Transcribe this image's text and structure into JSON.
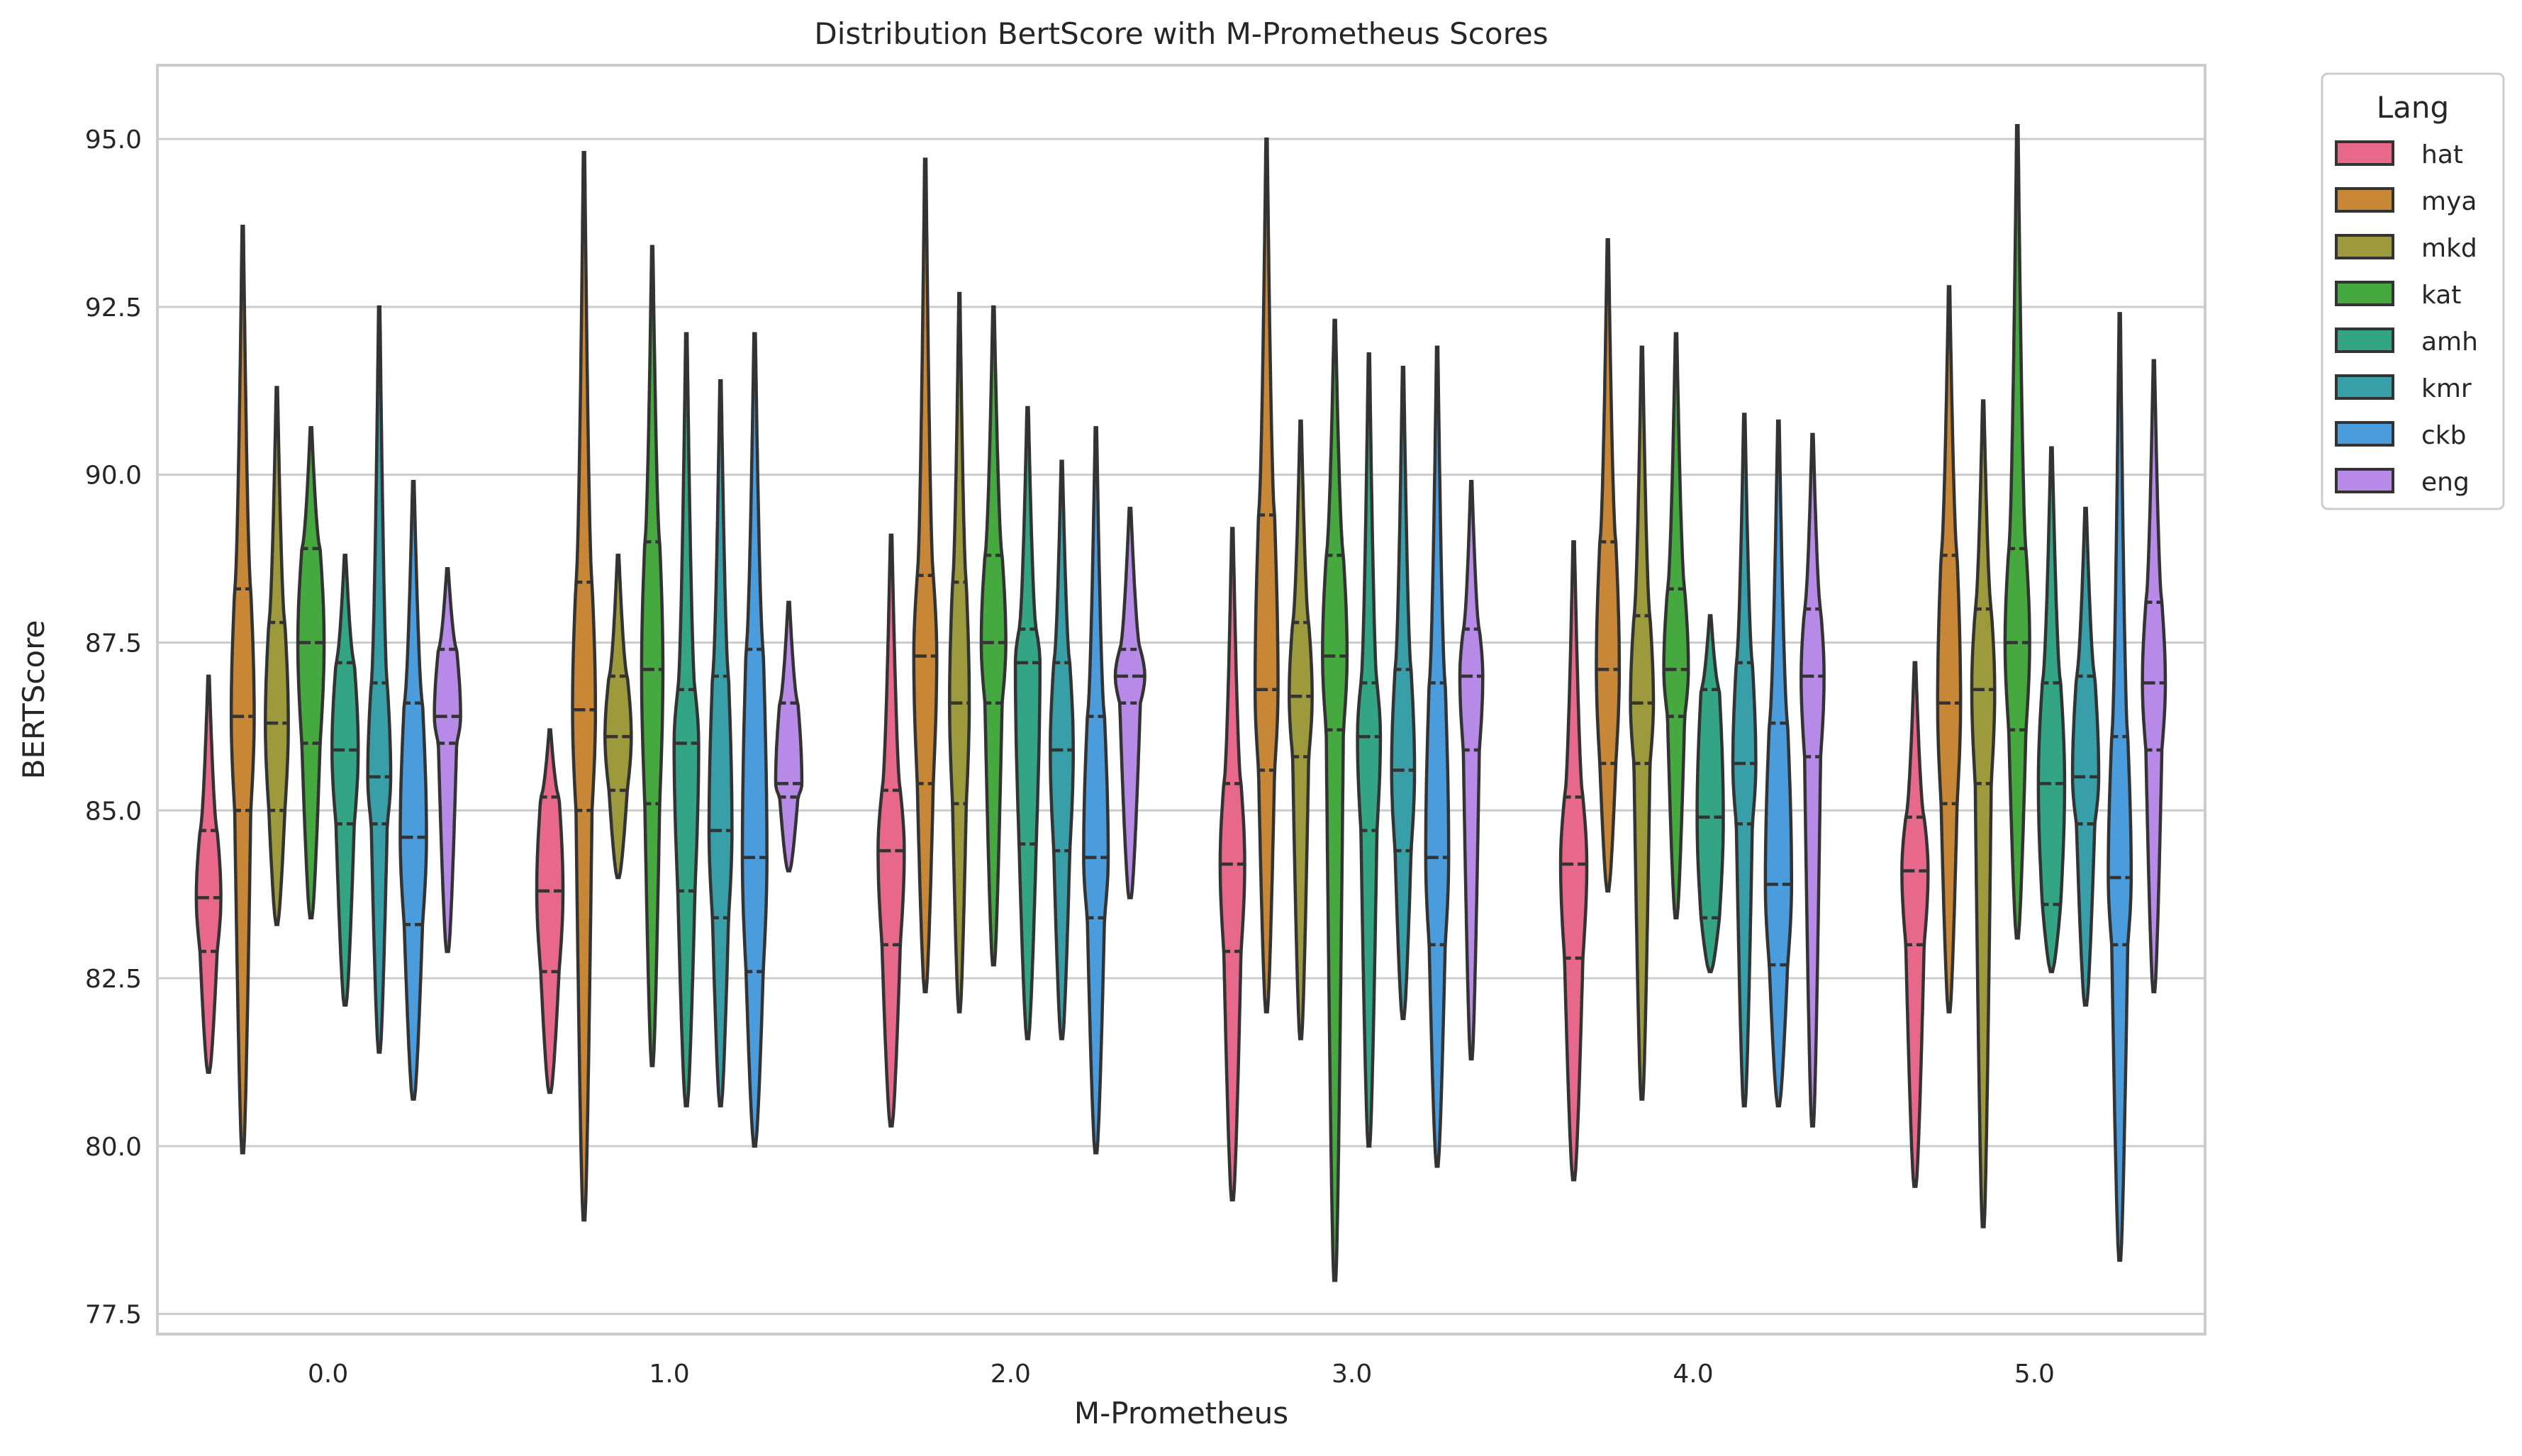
{
  "chart_data": {
    "type": "violin",
    "title": "Distribution BertScore with M-Prometheus Scores",
    "xlabel": "M-Prometheus",
    "ylabel": "BERTScore",
    "ylim": [
      77.2,
      96.1
    ],
    "yticks": [
      77.5,
      80.0,
      82.5,
      85.0,
      87.5,
      90.0,
      92.5,
      95.0
    ],
    "ytick_labels": [
      "77.5",
      "80.0",
      "82.5",
      "85.0",
      "87.5",
      "90.0",
      "92.5",
      "95.0"
    ],
    "categories": [
      "0.0",
      "1.0",
      "2.0",
      "3.0",
      "4.0",
      "5.0"
    ],
    "grid": true,
    "inner": "quartile",
    "legend": {
      "title": "Lang",
      "placement": "outside-top-right"
    },
    "series": [
      {
        "name": "hat",
        "color": "#e8688c",
        "stats": [
          {
            "min": 81.1,
            "q1": 82.9,
            "median": 83.7,
            "q3": 84.7,
            "max": 87.0,
            "width": 0.75
          },
          {
            "min": 80.8,
            "q1": 82.6,
            "median": 83.8,
            "q3": 85.2,
            "max": 86.2,
            "width": 0.8
          },
          {
            "min": 80.3,
            "q1": 83.0,
            "median": 84.4,
            "q3": 85.3,
            "max": 89.1,
            "width": 0.8
          },
          {
            "min": 79.2,
            "q1": 82.9,
            "median": 84.2,
            "q3": 85.4,
            "max": 89.2,
            "width": 0.75
          },
          {
            "min": 79.5,
            "q1": 82.8,
            "median": 84.2,
            "q3": 85.2,
            "max": 89.0,
            "width": 0.8
          },
          {
            "min": 79.4,
            "q1": 83.0,
            "median": 84.1,
            "q3": 84.9,
            "max": 87.2,
            "width": 0.8
          }
        ]
      },
      {
        "name": "mya",
        "color": "#c88737",
        "stats": [
          {
            "min": 79.9,
            "q1": 85.0,
            "median": 86.4,
            "q3": 88.3,
            "max": 93.7,
            "width": 0.7
          },
          {
            "min": 78.9,
            "q1": 85.0,
            "median": 86.5,
            "q3": 88.4,
            "max": 94.8,
            "width": 0.7
          },
          {
            "min": 82.3,
            "q1": 85.4,
            "median": 87.3,
            "q3": 88.5,
            "max": 94.7,
            "width": 0.7
          },
          {
            "min": 82.0,
            "q1": 85.6,
            "median": 86.8,
            "q3": 89.4,
            "max": 95.0,
            "width": 0.7
          },
          {
            "min": 83.8,
            "q1": 85.7,
            "median": 87.1,
            "q3": 89.0,
            "max": 93.5,
            "width": 0.7
          },
          {
            "min": 82.0,
            "q1": 85.1,
            "median": 86.6,
            "q3": 88.8,
            "max": 92.8,
            "width": 0.7
          }
        ]
      },
      {
        "name": "mkd",
        "color": "#9c9a3c",
        "stats": [
          {
            "min": 83.3,
            "q1": 85.0,
            "median": 86.3,
            "q3": 87.8,
            "max": 91.3,
            "width": 0.7
          },
          {
            "min": 84.0,
            "q1": 85.3,
            "median": 86.1,
            "q3": 87.0,
            "max": 88.8,
            "width": 0.8
          },
          {
            "min": 82.0,
            "q1": 85.1,
            "median": 86.6,
            "q3": 88.4,
            "max": 92.7,
            "width": 0.6
          },
          {
            "min": 81.6,
            "q1": 85.8,
            "median": 86.7,
            "q3": 87.8,
            "max": 90.8,
            "width": 0.7
          },
          {
            "min": 80.7,
            "q1": 85.7,
            "median": 86.6,
            "q3": 87.9,
            "max": 91.9,
            "width": 0.7
          },
          {
            "min": 78.8,
            "q1": 85.4,
            "median": 86.8,
            "q3": 88.0,
            "max": 91.1,
            "width": 0.7
          }
        ]
      },
      {
        "name": "kat",
        "color": "#45a93f",
        "stats": [
          {
            "min": 83.4,
            "q1": 86.0,
            "median": 87.5,
            "q3": 88.9,
            "max": 90.7,
            "width": 0.8
          },
          {
            "min": 81.2,
            "q1": 85.1,
            "median": 87.1,
            "q3": 89.0,
            "max": 93.4,
            "width": 0.65
          },
          {
            "min": 82.7,
            "q1": 86.6,
            "median": 87.5,
            "q3": 88.8,
            "max": 92.5,
            "width": 0.75
          },
          {
            "min": 78.0,
            "q1": 86.2,
            "median": 87.3,
            "q3": 88.8,
            "max": 92.3,
            "width": 0.75
          },
          {
            "min": 83.4,
            "q1": 86.4,
            "median": 87.1,
            "q3": 88.3,
            "max": 92.1,
            "width": 0.75
          },
          {
            "min": 83.1,
            "q1": 86.2,
            "median": 87.5,
            "q3": 88.9,
            "max": 95.2,
            "width": 0.75
          }
        ]
      },
      {
        "name": "amh",
        "color": "#33a584",
        "stats": [
          {
            "min": 82.1,
            "q1": 84.8,
            "median": 85.9,
            "q3": 87.2,
            "max": 88.8,
            "width": 0.8
          },
          {
            "min": 80.6,
            "q1": 83.8,
            "median": 86.0,
            "q3": 86.8,
            "max": 92.1,
            "width": 0.75
          },
          {
            "min": 81.6,
            "q1": 84.5,
            "median": 87.2,
            "q3": 87.7,
            "max": 91.0,
            "width": 0.75
          },
          {
            "min": 80.0,
            "q1": 84.7,
            "median": 86.1,
            "q3": 86.9,
            "max": 91.8,
            "width": 0.7
          },
          {
            "min": 82.6,
            "q1": 83.4,
            "median": 84.9,
            "q3": 86.8,
            "max": 87.9,
            "width": 0.8
          },
          {
            "min": 82.6,
            "q1": 83.6,
            "median": 85.4,
            "q3": 86.9,
            "max": 90.4,
            "width": 0.8
          }
        ]
      },
      {
        "name": "kmr",
        "color": "#389fa9",
        "stats": [
          {
            "min": 81.4,
            "q1": 84.8,
            "median": 85.5,
            "q3": 86.9,
            "max": 92.5,
            "width": 0.7
          },
          {
            "min": 80.6,
            "q1": 83.4,
            "median": 84.7,
            "q3": 87.0,
            "max": 91.4,
            "width": 0.7
          },
          {
            "min": 81.6,
            "q1": 84.4,
            "median": 85.9,
            "q3": 87.2,
            "max": 90.2,
            "width": 0.7
          },
          {
            "min": 81.9,
            "q1": 84.4,
            "median": 85.6,
            "q3": 87.1,
            "max": 91.6,
            "width": 0.7
          },
          {
            "min": 80.6,
            "q1": 84.8,
            "median": 85.7,
            "q3": 87.2,
            "max": 90.9,
            "width": 0.7
          },
          {
            "min": 82.1,
            "q1": 84.8,
            "median": 85.5,
            "q3": 87.0,
            "max": 89.5,
            "width": 0.8
          }
        ]
      },
      {
        "name": "ckb",
        "color": "#4a9cdc",
        "stats": [
          {
            "min": 80.7,
            "q1": 83.3,
            "median": 84.6,
            "q3": 86.6,
            "max": 89.9,
            "width": 0.8
          },
          {
            "min": 80.0,
            "q1": 82.6,
            "median": 84.3,
            "q3": 87.4,
            "max": 92.1,
            "width": 0.75
          },
          {
            "min": 79.9,
            "q1": 83.4,
            "median": 84.3,
            "q3": 86.4,
            "max": 90.7,
            "width": 0.75
          },
          {
            "min": 79.7,
            "q1": 83.0,
            "median": 84.3,
            "q3": 86.9,
            "max": 91.9,
            "width": 0.7
          },
          {
            "min": 80.6,
            "q1": 82.7,
            "median": 83.9,
            "q3": 86.3,
            "max": 90.8,
            "width": 0.8
          },
          {
            "min": 78.3,
            "q1": 83.0,
            "median": 84.0,
            "q3": 86.1,
            "max": 92.4,
            "width": 0.7
          }
        ]
      },
      {
        "name": "eng",
        "color": "#b88ae7",
        "stats": [
          {
            "min": 82.9,
            "q1": 86.0,
            "median": 86.4,
            "q3": 87.4,
            "max": 88.6,
            "width": 0.8
          },
          {
            "min": 84.1,
            "q1": 85.2,
            "median": 85.4,
            "q3": 86.6,
            "max": 88.1,
            "width": 0.8
          },
          {
            "min": 83.7,
            "q1": 86.6,
            "median": 87.0,
            "q3": 87.4,
            "max": 89.5,
            "width": 0.9
          },
          {
            "min": 81.3,
            "q1": 85.9,
            "median": 87.0,
            "q3": 87.7,
            "max": 89.9,
            "width": 0.7
          },
          {
            "min": 80.3,
            "q1": 85.8,
            "median": 87.0,
            "q3": 88.0,
            "max": 90.6,
            "width": 0.7
          },
          {
            "min": 82.3,
            "q1": 85.9,
            "median": 86.9,
            "q3": 88.1,
            "max": 91.7,
            "width": 0.7
          }
        ]
      }
    ]
  }
}
